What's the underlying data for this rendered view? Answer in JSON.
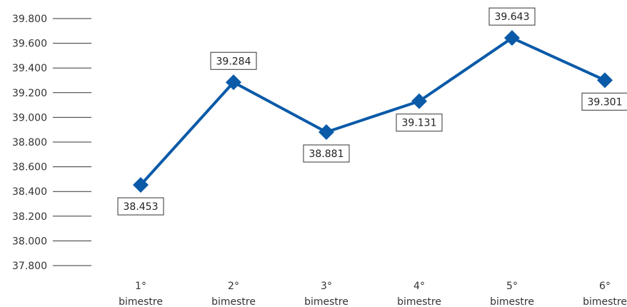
{
  "chart_data": {
    "type": "line",
    "categories": [
      [
        "1°",
        "bimestre"
      ],
      [
        "2°",
        "bimestre"
      ],
      [
        "3°",
        "bimestre"
      ],
      [
        "4°",
        "bimestre"
      ],
      [
        "5°",
        "bimestre"
      ],
      [
        "6°",
        "bimestre"
      ]
    ],
    "series": [
      {
        "values": [
          38453,
          39284,
          38881,
          39131,
          39643,
          39301
        ],
        "value_labels": [
          "38.453",
          "39.284",
          "38.881",
          "39.131",
          "39.643",
          "39.301"
        ],
        "color": "#0a5aa8",
        "marker": "diamond"
      }
    ],
    "ylim": [
      37800,
      39800
    ],
    "yticks": [
      37800,
      38000,
      38200,
      38400,
      38600,
      38800,
      39000,
      39200,
      39400,
      39600,
      39800
    ],
    "ytick_labels": [
      "37.800",
      "38.000",
      "38.200",
      "38.400",
      "38.600",
      "38.800",
      "39.000",
      "39.200",
      "39.400",
      "39.600",
      "39.800"
    ],
    "title": "",
    "xlabel": "",
    "ylabel": "",
    "grid": false,
    "legend": "none"
  }
}
